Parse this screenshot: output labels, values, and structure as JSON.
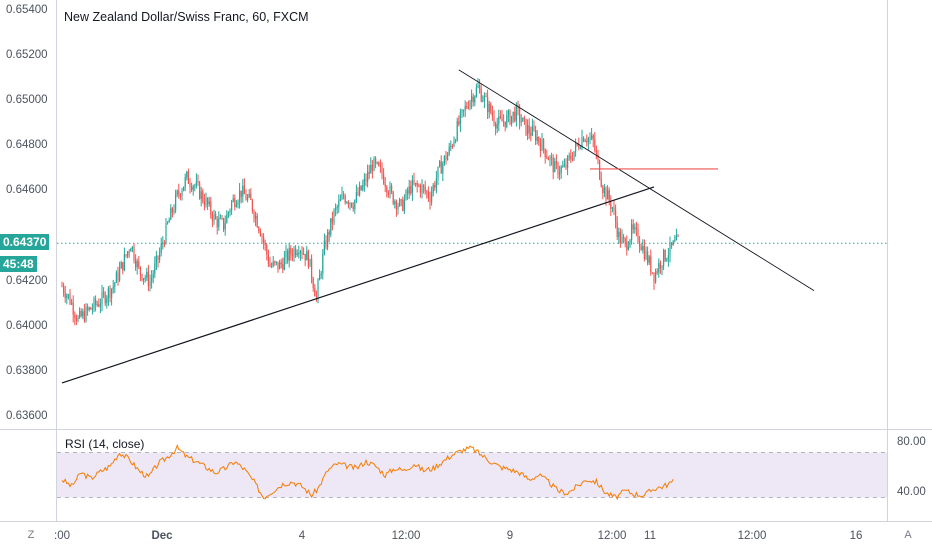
{
  "symbol_title": "New Zealand Dollar/Swiss Franc, 60, FXCM",
  "price_axis": [
    "0.65400",
    "0.65200",
    "0.65000",
    "0.64800",
    "0.64600",
    "0.64200",
    "0.64000",
    "0.63800",
    "0.63600"
  ],
  "current_price": "0.64370",
  "countdown": "45:48",
  "rsi": {
    "title": "RSI (14, close)",
    "axis": [
      "80.00",
      "40.00"
    ],
    "upper_band": 70,
    "lower_band": 30
  },
  "time_axis": [
    ":00",
    "Dec",
    "4",
    "12:00",
    "9",
    "12:00",
    "11",
    "12:00",
    "16"
  ],
  "buttons": {
    "timezone_label": "Z",
    "auto_scale_label": "A"
  },
  "colors": {
    "up": "#26a69a",
    "down": "#ef5350",
    "trendline": "#131722",
    "resistance": "#ef5350",
    "price_line": "#26a69a",
    "rsi_line": "#f57c00",
    "rsi_band": "#ede7f6"
  },
  "chart_data": {
    "type": "candlestick",
    "title": "New Zealand Dollar/Swiss Franc, 60, FXCM",
    "xlabel": "",
    "ylabel": "",
    "ylim": [
      0.6355,
      0.6545
    ],
    "x_ticks": [
      ":00",
      "Dec",
      "4",
      "12:00",
      "9",
      "12:00",
      "11",
      "12:00",
      "16"
    ],
    "close_path": [
      [
        0,
        0.6418
      ],
      [
        5,
        0.6412
      ],
      [
        10,
        0.6403
      ],
      [
        18,
        0.6408
      ],
      [
        25,
        0.6412
      ],
      [
        32,
        0.6418
      ],
      [
        38,
        0.6428
      ],
      [
        43,
        0.6437
      ],
      [
        48,
        0.6425
      ],
      [
        55,
        0.642
      ],
      [
        60,
        0.643
      ],
      [
        66,
        0.6445
      ],
      [
        72,
        0.6458
      ],
      [
        78,
        0.6466
      ],
      [
        84,
        0.6462
      ],
      [
        90,
        0.6455
      ],
      [
        96,
        0.6447
      ],
      [
        101,
        0.6445
      ],
      [
        106,
        0.6455
      ],
      [
        112,
        0.646
      ],
      [
        118,
        0.6455
      ],
      [
        124,
        0.6443
      ],
      [
        130,
        0.6427
      ],
      [
        136,
        0.6427
      ],
      [
        142,
        0.6432
      ],
      [
        148,
        0.6436
      ],
      [
        154,
        0.643
      ],
      [
        159,
        0.6413
      ],
      [
        164,
        0.6435
      ],
      [
        170,
        0.645
      ],
      [
        176,
        0.6458
      ],
      [
        182,
        0.6455
      ],
      [
        188,
        0.6462
      ],
      [
        194,
        0.6472
      ],
      [
        200,
        0.6468
      ],
      [
        206,
        0.6458
      ],
      [
        212,
        0.6453
      ],
      [
        218,
        0.6462
      ],
      [
        224,
        0.6462
      ],
      [
        230,
        0.6458
      ],
      [
        236,
        0.647
      ],
      [
        242,
        0.6478
      ],
      [
        248,
        0.649
      ],
      [
        254,
        0.65
      ],
      [
        260,
        0.6506
      ],
      [
        266,
        0.6498
      ],
      [
        272,
        0.649
      ],
      [
        278,
        0.6492
      ],
      [
        284,
        0.6495
      ],
      [
        290,
        0.6488
      ],
      [
        296,
        0.6485
      ],
      [
        302,
        0.6478
      ],
      [
        308,
        0.647
      ],
      [
        314,
        0.647
      ],
      [
        320,
        0.6478
      ],
      [
        326,
        0.6485
      ],
      [
        332,
        0.6482
      ],
      [
        338,
        0.6462
      ],
      [
        344,
        0.6453
      ],
      [
        348,
        0.644
      ],
      [
        352,
        0.6436
      ],
      [
        356,
        0.6442
      ],
      [
        360,
        0.644
      ],
      [
        366,
        0.643
      ],
      [
        370,
        0.6423
      ],
      [
        375,
        0.643
      ],
      [
        380,
        0.6434
      ],
      [
        385,
        0.6438
      ]
    ],
    "rsi_path": [
      [
        0,
        46
      ],
      [
        6,
        40
      ],
      [
        12,
        52
      ],
      [
        18,
        47
      ],
      [
        24,
        53
      ],
      [
        30,
        58
      ],
      [
        36,
        70
      ],
      [
        42,
        64
      ],
      [
        48,
        54
      ],
      [
        54,
        48
      ],
      [
        60,
        60
      ],
      [
        66,
        66
      ],
      [
        72,
        74
      ],
      [
        78,
        66
      ],
      [
        84,
        62
      ],
      [
        90,
        57
      ],
      [
        96,
        52
      ],
      [
        102,
        56
      ],
      [
        108,
        62
      ],
      [
        114,
        55
      ],
      [
        120,
        44
      ],
      [
        126,
        30
      ],
      [
        132,
        36
      ],
      [
        138,
        42
      ],
      [
        144,
        44
      ],
      [
        150,
        40
      ],
      [
        156,
        32
      ],
      [
        160,
        38
      ],
      [
        166,
        54
      ],
      [
        172,
        60
      ],
      [
        178,
        58
      ],
      [
        184,
        56
      ],
      [
        190,
        62
      ],
      [
        196,
        58
      ],
      [
        202,
        50
      ],
      [
        208,
        56
      ],
      [
        214,
        54
      ],
      [
        220,
        60
      ],
      [
        226,
        54
      ],
      [
        232,
        56
      ],
      [
        238,
        62
      ],
      [
        244,
        68
      ],
      [
        250,
        72
      ],
      [
        256,
        74
      ],
      [
        262,
        68
      ],
      [
        268,
        62
      ],
      [
        274,
        57
      ],
      [
        280,
        55
      ],
      [
        286,
        52
      ],
      [
        292,
        46
      ],
      [
        298,
        50
      ],
      [
        304,
        44
      ],
      [
        310,
        36
      ],
      [
        316,
        34
      ],
      [
        322,
        40
      ],
      [
        328,
        46
      ],
      [
        334,
        44
      ],
      [
        340,
        34
      ],
      [
        346,
        30
      ],
      [
        352,
        36
      ],
      [
        358,
        33
      ],
      [
        364,
        32
      ],
      [
        370,
        38
      ],
      [
        376,
        40
      ],
      [
        382,
        44
      ]
    ],
    "trendlines": [
      {
        "from": [
          0,
          0.6375
        ],
        "to": [
          370,
          0.6462
        ]
      },
      {
        "from": [
          248,
          0.6514
        ],
        "to": [
          470,
          0.6416
        ]
      }
    ],
    "resistance_level": {
      "from": [
        330,
        0.647
      ],
      "to": [
        410,
        0.647
      ]
    },
    "current_price": 0.6437
  }
}
